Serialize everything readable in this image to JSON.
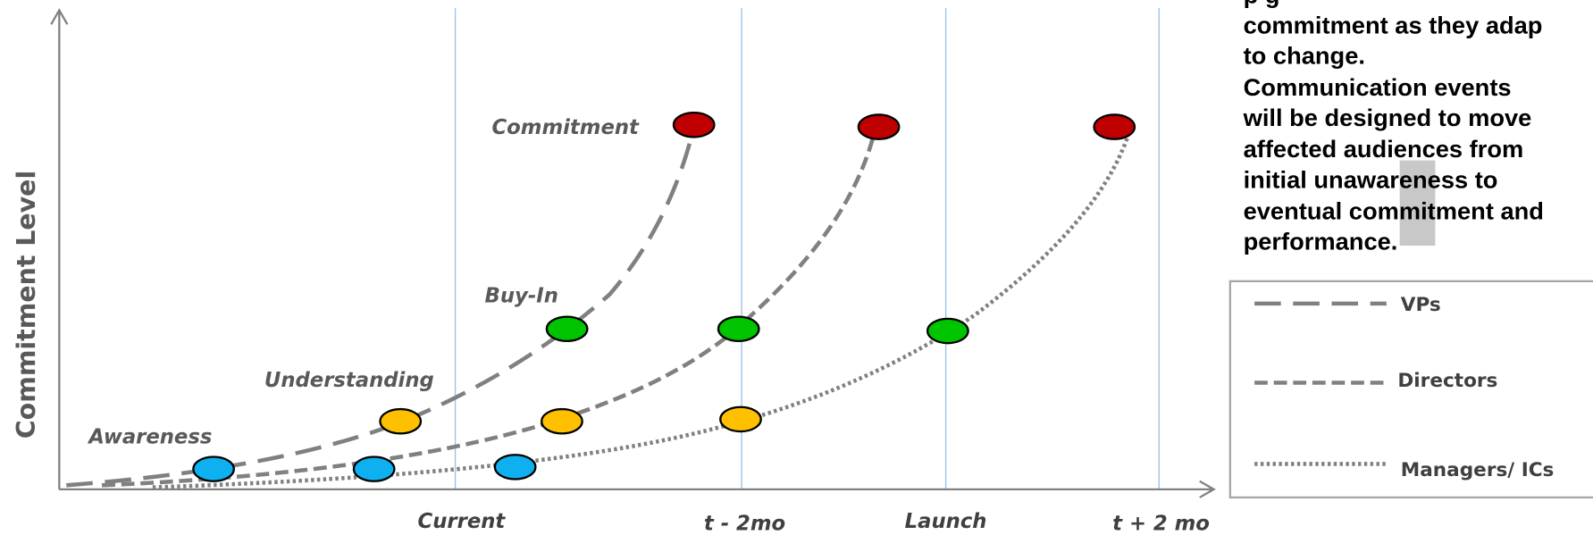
{
  "axis_label": "Commitment Level",
  "stages": [
    "Awareness",
    "Understanding",
    "Buy-In",
    "Commitment"
  ],
  "timeline": [
    "Current",
    "t - 2mo",
    "Launch",
    "t + 2 mo"
  ],
  "legend": [
    "VPs",
    "Directors",
    "Managers/ ICs"
  ],
  "note_lines": [
    "commitment as they adap",
    "to change.",
    "Communication events",
    "will be designed to move",
    "affected audiences from",
    "initial unawareness to",
    "eventual commitment and",
    "performance."
  ]
}
